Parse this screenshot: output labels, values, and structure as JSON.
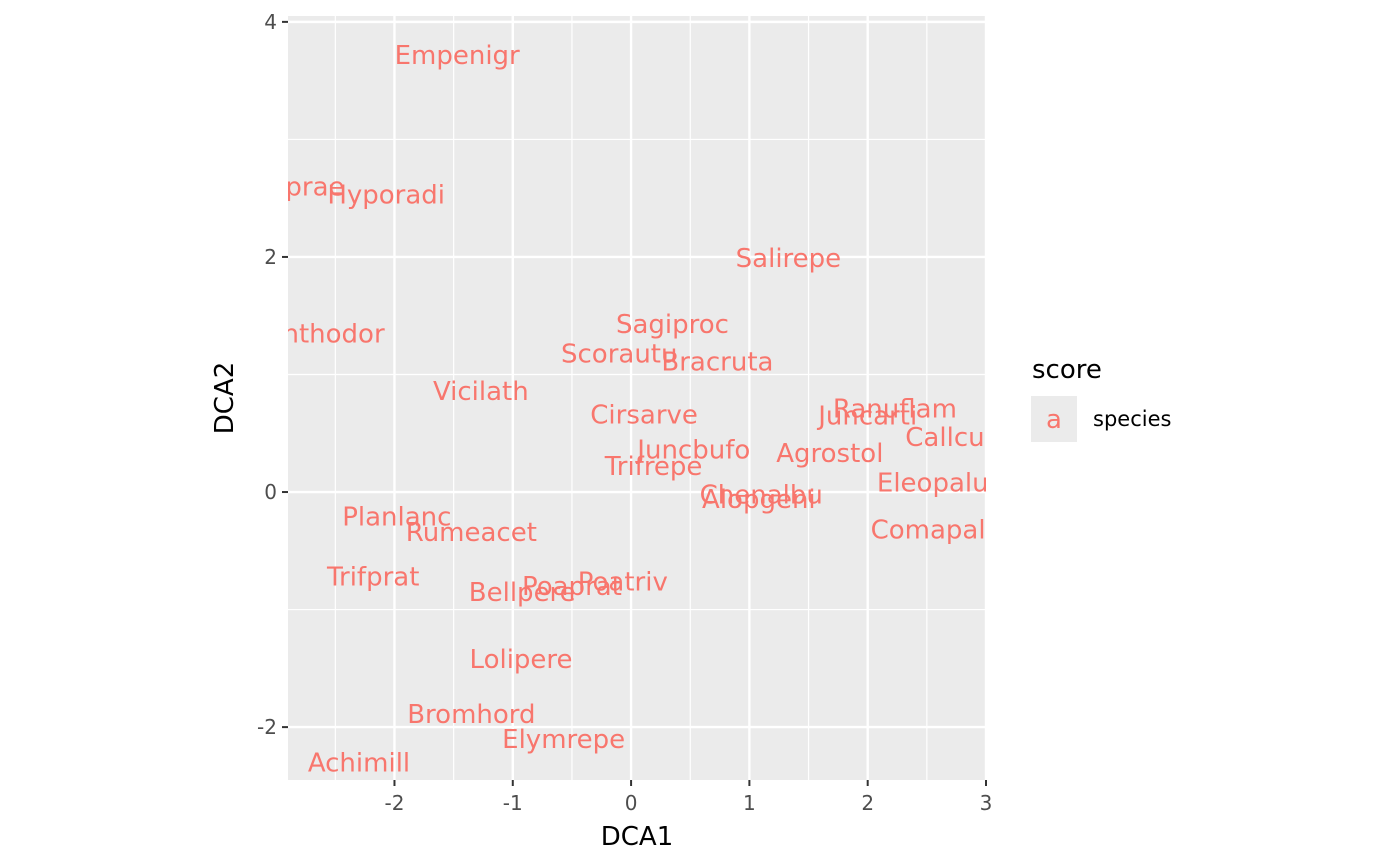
{
  "chart_data": {
    "type": "scatter",
    "title": "",
    "xlabel": "DCA1",
    "ylabel": "DCA2",
    "xlim": [
      -2.9,
      3.0
    ],
    "ylim": [
      -2.45,
      4.05
    ],
    "x_ticks": [
      -2,
      -1,
      0,
      1,
      2,
      3
    ],
    "y_ticks": [
      -2,
      0,
      2,
      4
    ],
    "x_tick_labels": [
      "-2",
      "-1",
      "0",
      "1",
      "2",
      "3"
    ],
    "y_tick_labels": [
      "-2",
      "0",
      "2",
      "4"
    ],
    "grid": true,
    "legend": {
      "title": "score",
      "position": "right",
      "entries": [
        {
          "key": "a",
          "label": "species"
        }
      ]
    },
    "series": [
      {
        "name": "species",
        "color": "#f8766d",
        "points": [
          {
            "label": "Empenigr",
            "x": -1.47,
            "y": 3.72
          },
          {
            "label": "Airaprae",
            "x": -2.89,
            "y": 2.6
          },
          {
            "label": "Hyporadi",
            "x": -2.07,
            "y": 2.53
          },
          {
            "label": "Salirepe",
            "x": 1.33,
            "y": 1.99
          },
          {
            "label": "Anthodor",
            "x": -2.59,
            "y": 1.35
          },
          {
            "label": "Sagiproc",
            "x": 0.35,
            "y": 1.43
          },
          {
            "label": "Scorautu",
            "x": -0.1,
            "y": 1.18
          },
          {
            "label": "Bracruta",
            "x": 0.73,
            "y": 1.11
          },
          {
            "label": "Vicilath",
            "x": -1.27,
            "y": 0.86
          },
          {
            "label": "Cirsarve",
            "x": 0.11,
            "y": 0.66
          },
          {
            "label": "Ranuflam",
            "x": 2.23,
            "y": 0.71
          },
          {
            "label": "Juncarti",
            "x": 2.0,
            "y": 0.65
          },
          {
            "label": "Callcusp",
            "x": 2.78,
            "y": 0.47
          },
          {
            "label": "Juncbufo",
            "x": 0.53,
            "y": 0.36
          },
          {
            "label": "Agrostol",
            "x": 1.68,
            "y": 0.33
          },
          {
            "label": "Trifrepe",
            "x": 0.19,
            "y": 0.22
          },
          {
            "label": "Eleopalu",
            "x": 2.55,
            "y": 0.08
          },
          {
            "label": "Chenalbu",
            "x": 1.1,
            "y": -0.02
          },
          {
            "label": "Alopgeni",
            "x": 1.08,
            "y": -0.06
          },
          {
            "label": "Planlanc",
            "x": -1.98,
            "y": -0.21
          },
          {
            "label": "Rumeacet",
            "x": -1.35,
            "y": -0.34
          },
          {
            "label": "Comapalu",
            "x": 2.58,
            "y": -0.32
          },
          {
            "label": "Trifprat",
            "x": -2.18,
            "y": -0.72
          },
          {
            "label": "Poaprat",
            "x": -0.5,
            "y": -0.8
          },
          {
            "label": "Poatriv",
            "x": -0.07,
            "y": -0.76
          },
          {
            "label": "Bellpere",
            "x": -0.92,
            "y": -0.85
          },
          {
            "label": "Lolipere",
            "x": -0.93,
            "y": -1.42
          },
          {
            "label": "Bromhord",
            "x": -1.35,
            "y": -1.89
          },
          {
            "label": "Elymrepe",
            "x": -0.57,
            "y": -2.1
          },
          {
            "label": "Achimill",
            "x": -2.3,
            "y": -2.3
          }
        ]
      }
    ]
  }
}
